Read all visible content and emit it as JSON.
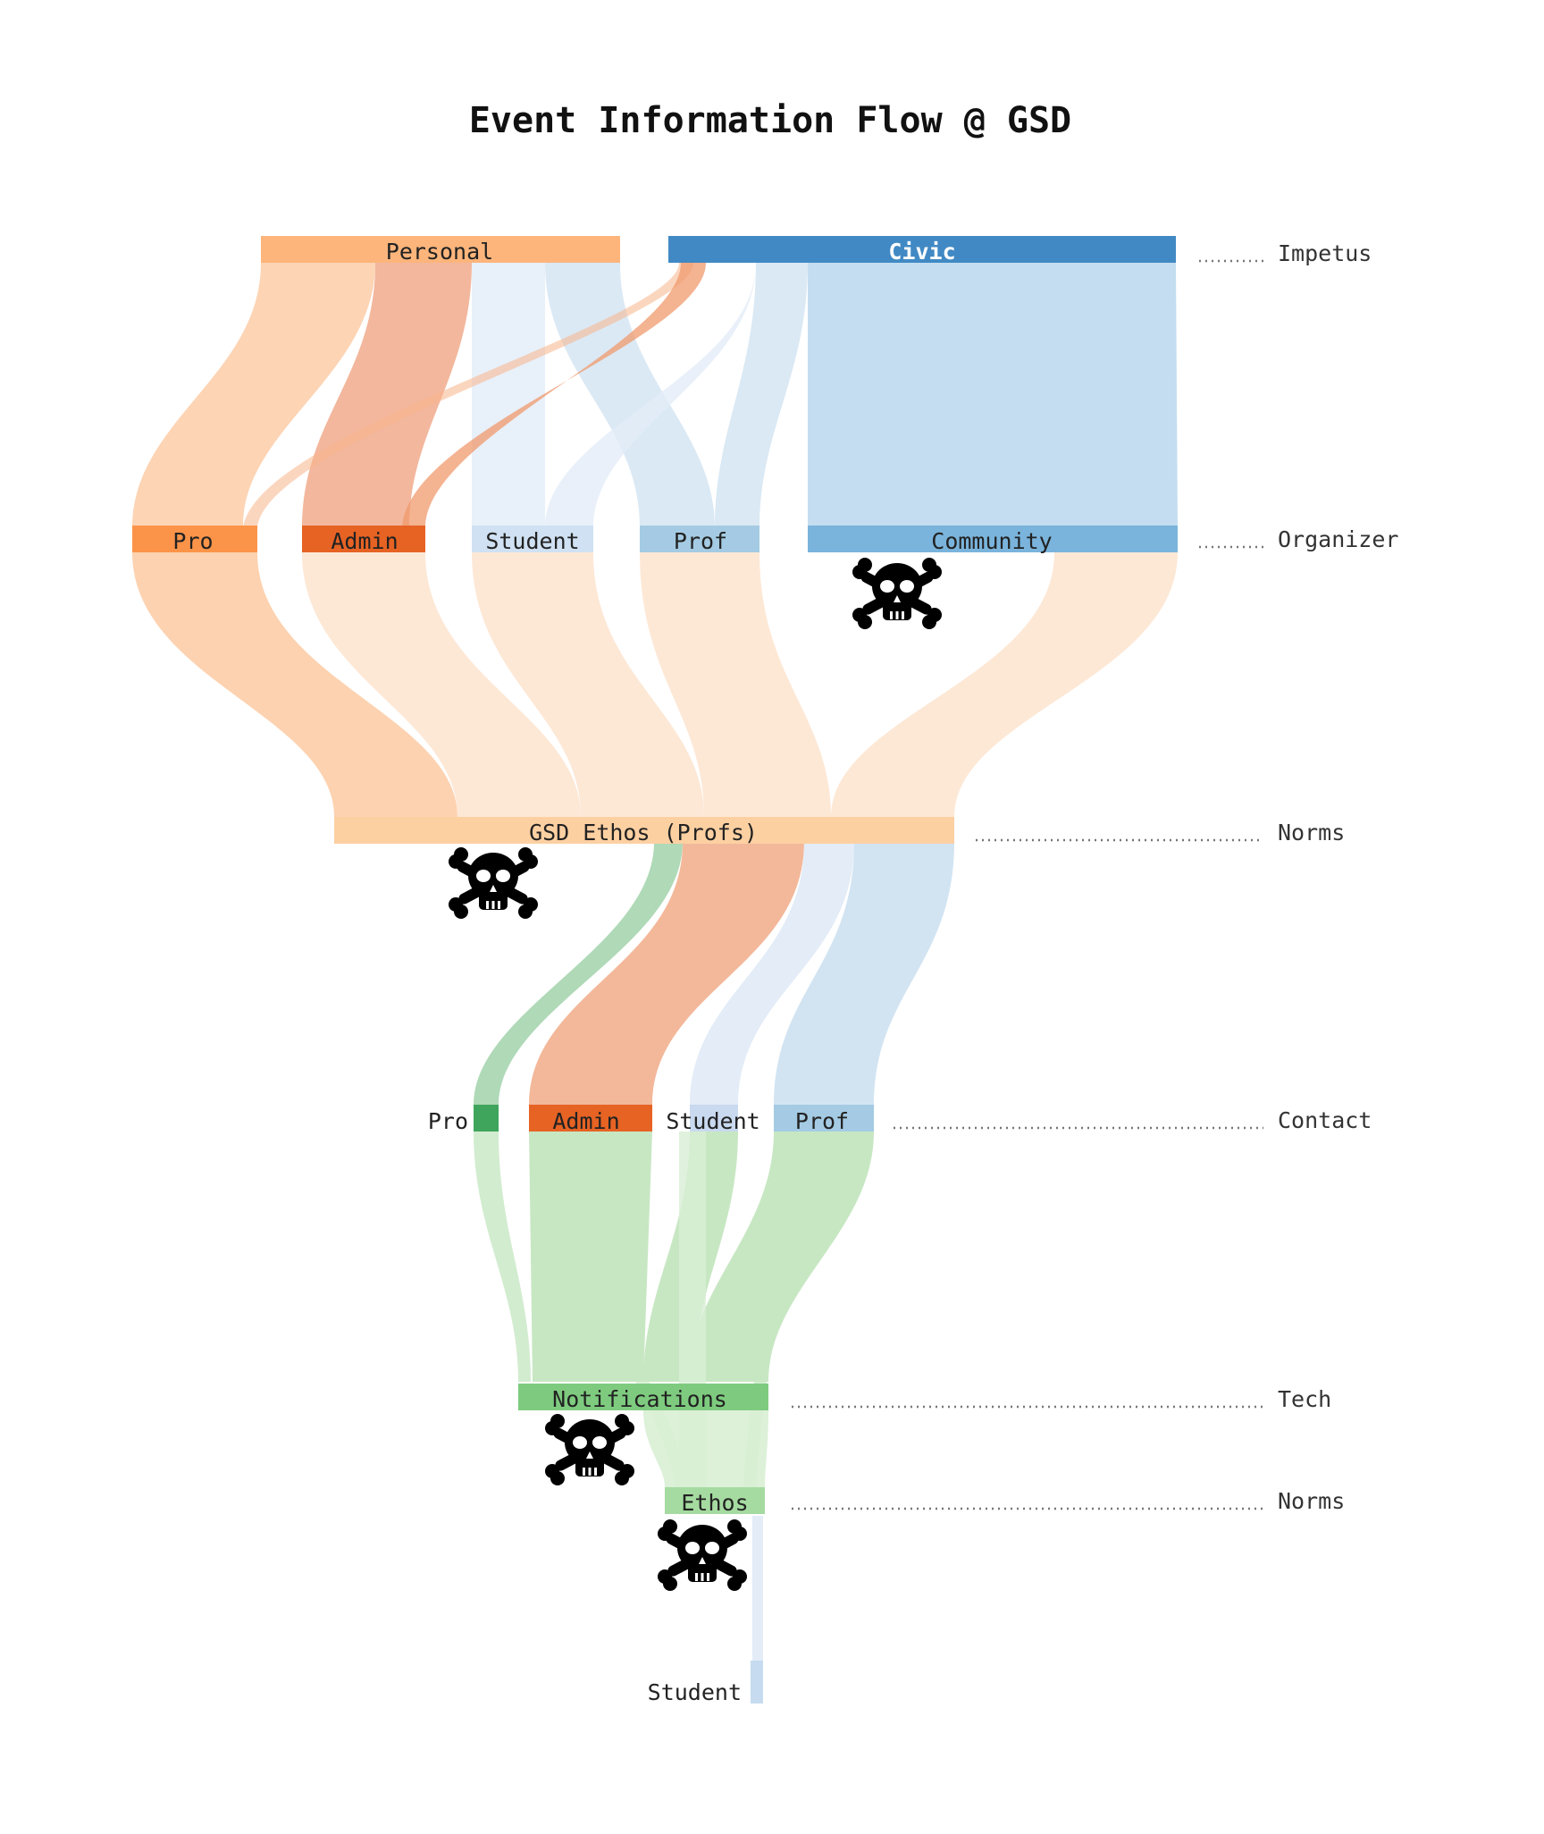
{
  "title": "Event Information Flow @ GSD",
  "colors": {
    "personal": "#fcb175",
    "civic": "#4189c4",
    "pro_org": "#fb9449",
    "admin_org": "#e66324",
    "student_org": "#cfe1f2",
    "prof_org": "#a4cbe3",
    "community": "#7ab4dc",
    "ethos_profs": "#fdd0a2",
    "contact_pro": "#3fa55c",
    "contact_admin": "#e66324",
    "contact_student": "#c9d9ef",
    "contact_prof": "#a4cbe3",
    "notifications": "#7ecb7f",
    "ethos": "#a5dba0",
    "student_end": "#c6dbef",
    "flow_orange": "#fdd0a7",
    "flow_orange_light": "#fde9d6",
    "flow_red": "#f2a17e",
    "flow_blue_light": "#dce7f5",
    "flow_blue": "#c6def0",
    "flow_green": "#c7e7c3",
    "flow_green_dark": "#9bd0a5"
  },
  "stages": [
    {
      "id": "impetus",
      "label": "Impetus"
    },
    {
      "id": "organizer",
      "label": "Organizer"
    },
    {
      "id": "norms1",
      "label": "Norms"
    },
    {
      "id": "contact",
      "label": "Contact"
    },
    {
      "id": "tech",
      "label": "Tech"
    },
    {
      "id": "norms2",
      "label": "Norms"
    }
  ],
  "nodes": {
    "personal": {
      "label": "Personal"
    },
    "civic": {
      "label": "Civic"
    },
    "org_pro": {
      "label": "Pro"
    },
    "org_admin": {
      "label": "Admin"
    },
    "org_student": {
      "label": "Student"
    },
    "org_prof": {
      "label": "Prof"
    },
    "org_community": {
      "label": "Community"
    },
    "gsd_ethos": {
      "label": "GSD Ethos (Profs)"
    },
    "contact_pro": {
      "label": "Pro"
    },
    "contact_admin": {
      "label": "Admin"
    },
    "contact_student": {
      "label": "Student"
    },
    "contact_prof": {
      "label": "Prof"
    },
    "notifications": {
      "label": "Notifications"
    },
    "ethos": {
      "label": "Ethos"
    },
    "student_end": {
      "label": "Student"
    }
  },
  "blocked_nodes": [
    "Community",
    "GSD Ethos (Profs)",
    "Notifications",
    "Ethos"
  ],
  "icons": [
    "skull-crossbones-icon"
  ]
}
